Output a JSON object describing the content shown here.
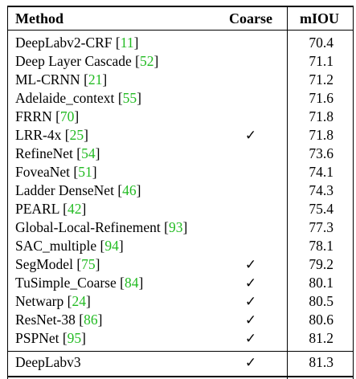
{
  "headers": {
    "method": "Method",
    "coarse": "Coarse",
    "miou": "mIOU"
  },
  "rows": [
    {
      "name": "DeepLabv2-CRF",
      "ref": "11",
      "coarse": "",
      "miou": "70.4"
    },
    {
      "name": "Deep Layer Cascade",
      "ref": "52",
      "coarse": "",
      "miou": "71.1"
    },
    {
      "name": "ML-CRNN",
      "ref": "21",
      "coarse": "",
      "miou": "71.2"
    },
    {
      "name": "Adelaide_context",
      "ref": "55",
      "coarse": "",
      "miou": "71.6"
    },
    {
      "name": "FRRN",
      "ref": "70",
      "coarse": "",
      "miou": "71.8"
    },
    {
      "name": "LRR-4x",
      "ref": "25",
      "coarse": "✓",
      "miou": "71.8"
    },
    {
      "name": "RefineNet",
      "ref": "54",
      "coarse": "",
      "miou": "73.6"
    },
    {
      "name": "FoveaNet",
      "ref": "51",
      "coarse": "",
      "miou": "74.1"
    },
    {
      "name": "Ladder DenseNet",
      "ref": "46",
      "coarse": "",
      "miou": "74.3"
    },
    {
      "name": "PEARL",
      "ref": "42",
      "coarse": "",
      "miou": "75.4"
    },
    {
      "name": "Global-Local-Refinement",
      "ref": "93",
      "coarse": "",
      "miou": "77.3"
    },
    {
      "name": "SAC_multiple",
      "ref": "94",
      "coarse": "",
      "miou": "78.1"
    },
    {
      "name": "SegModel",
      "ref": "75",
      "coarse": "✓",
      "miou": "79.2"
    },
    {
      "name": "TuSimple_Coarse",
      "ref": "84",
      "coarse": "✓",
      "miou": "80.1"
    },
    {
      "name": "Netwarp",
      "ref": "24",
      "coarse": "✓",
      "miou": "80.5"
    },
    {
      "name": "ResNet-38",
      "ref": "86",
      "coarse": "✓",
      "miou": "80.6"
    },
    {
      "name": "PSPNet",
      "ref": "95",
      "coarse": "✓",
      "miou": "81.2"
    },
    {
      "name": "DeepLabv3",
      "ref": "",
      "coarse": "✓",
      "miou": "81.3"
    }
  ],
  "colors": {
    "reference_link": "#22bb22",
    "text": "#000000"
  }
}
